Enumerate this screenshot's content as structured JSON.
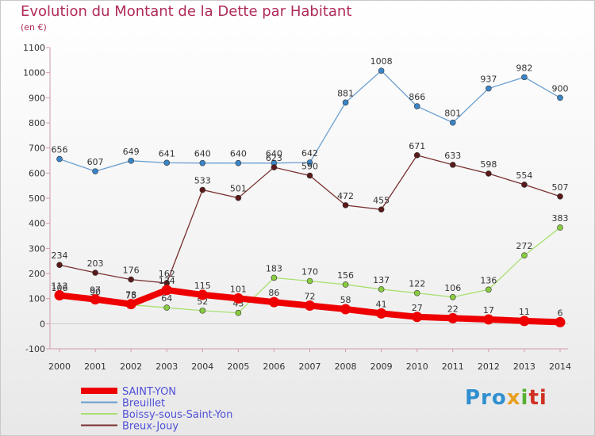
{
  "header": {
    "title": "Evolution du Montant de la Dette par Habitant",
    "unit": "(en €)"
  },
  "logo": {
    "parts": [
      "Pro",
      "x",
      "i",
      "ti"
    ]
  },
  "chart_data": {
    "type": "line",
    "title": "Evolution du Montant de la Dette par Habitant",
    "subtitle": "(en €)",
    "xlabel": "",
    "ylabel": "",
    "x": [
      2000,
      2001,
      2002,
      2003,
      2004,
      2005,
      2006,
      2007,
      2008,
      2009,
      2010,
      2011,
      2012,
      2013,
      2014
    ],
    "ylim": [
      -100,
      1100
    ],
    "yticks": [
      -100,
      0,
      100,
      200,
      300,
      400,
      500,
      600,
      700,
      800,
      900,
      1000,
      1100
    ],
    "grid": false,
    "legend": "bottom-left",
    "series": [
      {
        "name": "Breuillet",
        "color": "#6a9fd0",
        "marker": "#3a85c8",
        "values": [
          656,
          607,
          649,
          641,
          640,
          640,
          640,
          642,
          881,
          1008,
          866,
          801,
          937,
          982,
          900
        ]
      },
      {
        "name": "Boissy-sous-Saint-Yon",
        "color": "#a8e070",
        "marker": "#88cc40",
        "values": [
          106,
          90,
          75,
          64,
          52,
          43,
          183,
          170,
          156,
          137,
          122,
          106,
          136,
          272,
          383
        ]
      },
      {
        "name": "Breux-Jouy",
        "color": "#7a3030",
        "marker": "#5a1a1a",
        "values": [
          234,
          203,
          176,
          162,
          533,
          501,
          623,
          590,
          472,
          455,
          671,
          633,
          598,
          554,
          507
        ]
      },
      {
        "name": "SAINT-YON",
        "color": "#ee0000",
        "marker": "#ee0000",
        "thick": true,
        "values": [
          113,
          97,
          78,
          134,
          115,
          101,
          86,
          72,
          58,
          41,
          27,
          22,
          17,
          11,
          6
        ]
      }
    ]
  }
}
